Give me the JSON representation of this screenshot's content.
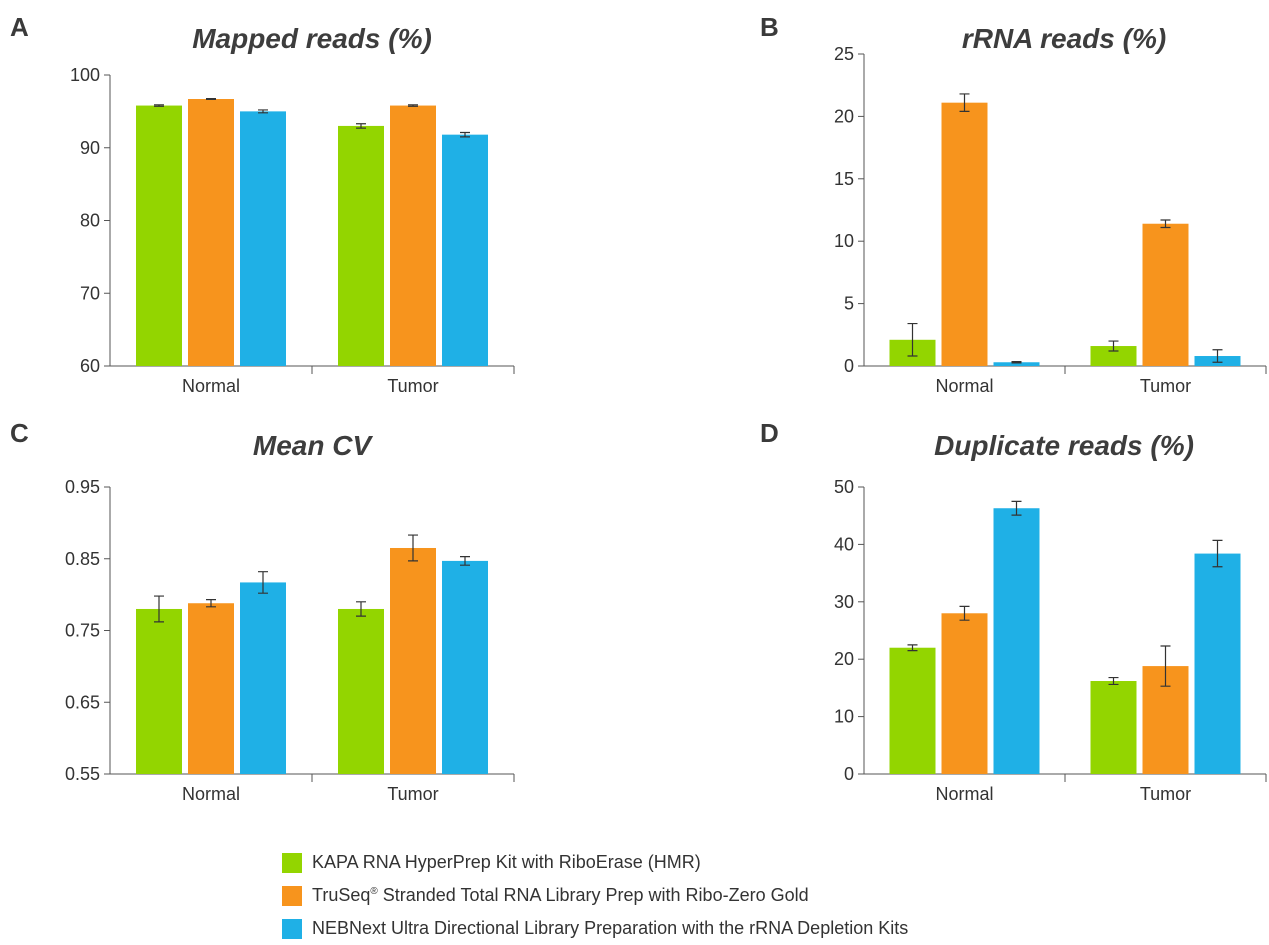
{
  "colors": {
    "kapa": "#93d500",
    "truseq": "#f7941d",
    "nebnext": "#1fb0e6"
  },
  "legend": [
    {
      "key": "kapa",
      "label": "KAPA RNA HyperPrep Kit with RiboErase (HMR)",
      "sup": ""
    },
    {
      "key": "truseq",
      "label": "TruSeq",
      "sup": "®",
      "label_rest": " Stranded Total RNA Library Prep with Ribo-Zero Gold"
    },
    {
      "key": "nebnext",
      "label": "NEBNext Ultra Directional Library Preparation with the rRNA Depletion Kits",
      "sup": ""
    }
  ],
  "chart_data": [
    {
      "panel": "A",
      "type": "bar",
      "title": "Mapped reads (%)",
      "categories": [
        "Normal",
        "Tumor"
      ],
      "ylim": [
        60,
        100
      ],
      "yticks": [
        "60",
        "70",
        "80",
        "90",
        "100"
      ],
      "series": [
        {
          "key": "kapa",
          "values": [
            95.8,
            93.0
          ],
          "errors": [
            0.1,
            0.3
          ]
        },
        {
          "key": "truseq",
          "values": [
            96.7,
            95.8
          ],
          "errors": [
            0.05,
            0.1
          ]
        },
        {
          "key": "nebnext",
          "values": [
            95.0,
            91.8
          ],
          "errors": [
            0.2,
            0.3
          ]
        }
      ]
    },
    {
      "panel": "B",
      "type": "bar",
      "title": "rRNA reads (%)",
      "categories": [
        "Normal",
        "Tumor"
      ],
      "ylim": [
        0,
        25
      ],
      "yticks": [
        "0",
        "5",
        "10",
        "15",
        "20",
        "25"
      ],
      "series": [
        {
          "key": "kapa",
          "values": [
            2.1,
            1.6
          ],
          "errors": [
            1.3,
            0.4
          ]
        },
        {
          "key": "truseq",
          "values": [
            21.1,
            11.4
          ],
          "errors": [
            0.7,
            0.3
          ]
        },
        {
          "key": "nebnext",
          "values": [
            0.3,
            0.8
          ],
          "errors": [
            0.05,
            0.5
          ]
        }
      ]
    },
    {
      "panel": "C",
      "type": "bar",
      "title": "Mean CV",
      "categories": [
        "Normal",
        "Tumor"
      ],
      "ylim": [
        0.55,
        0.95
      ],
      "yticks": [
        "0.55",
        "0.65",
        "0.75",
        "0.85",
        "0.95"
      ],
      "series": [
        {
          "key": "kapa",
          "values": [
            0.78,
            0.78
          ],
          "errors": [
            0.018,
            0.01
          ]
        },
        {
          "key": "truseq",
          "values": [
            0.788,
            0.865
          ],
          "errors": [
            0.005,
            0.018
          ]
        },
        {
          "key": "nebnext",
          "values": [
            0.817,
            0.847
          ],
          "errors": [
            0.015,
            0.006
          ]
        }
      ]
    },
    {
      "panel": "D",
      "type": "bar",
      "title": "Duplicate reads (%)",
      "categories": [
        "Normal",
        "Tumor"
      ],
      "ylim": [
        0,
        50
      ],
      "yticks": [
        "0",
        "10",
        "20",
        "30",
        "40",
        "50"
      ],
      "series": [
        {
          "key": "kapa",
          "values": [
            22.0,
            16.2
          ],
          "errors": [
            0.5,
            0.6
          ]
        },
        {
          "key": "truseq",
          "values": [
            28.0,
            18.8
          ],
          "errors": [
            1.2,
            3.5
          ]
        },
        {
          "key": "nebnext",
          "values": [
            46.3,
            38.4
          ],
          "errors": [
            1.2,
            2.3
          ]
        }
      ]
    }
  ]
}
